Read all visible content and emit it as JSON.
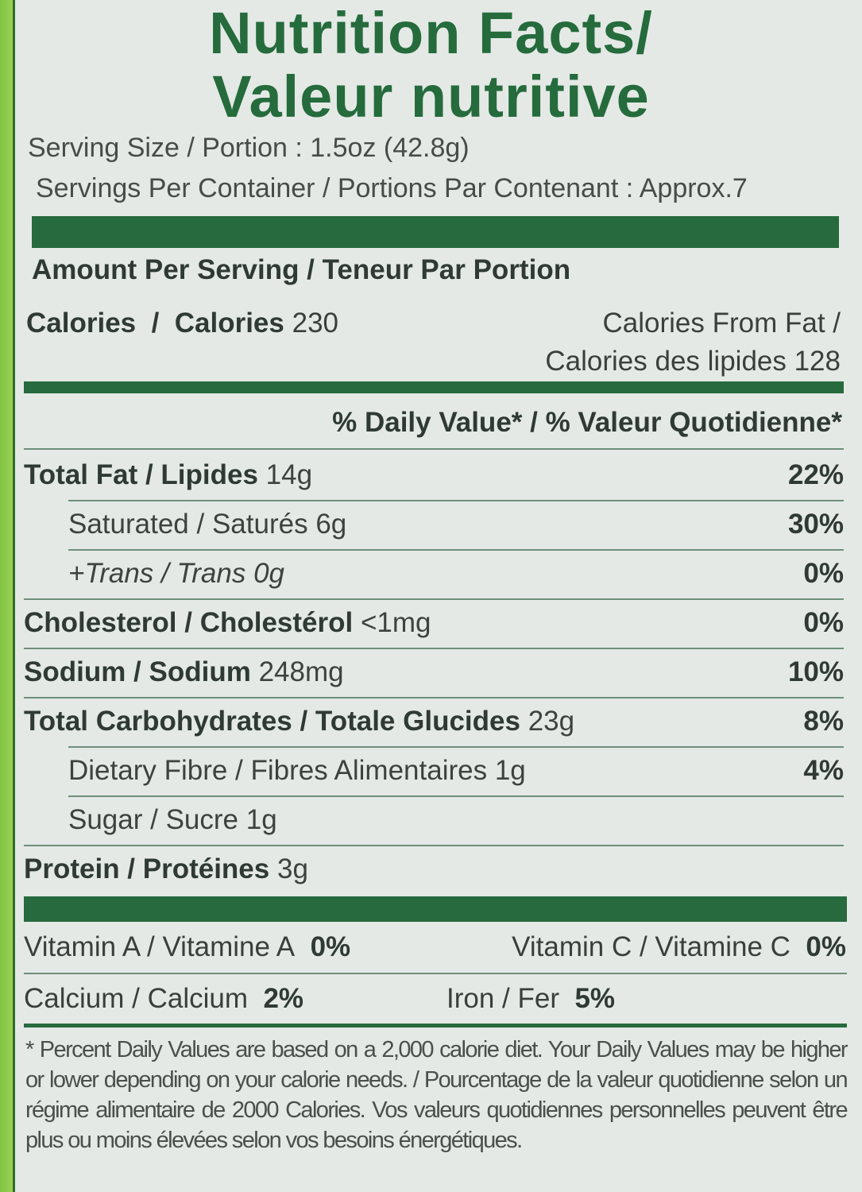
{
  "title": {
    "line1": "Nutrition Facts/",
    "line2": "Valeur nutritive"
  },
  "serving_size": "Serving Size / Portion : 1.5oz (42.8g)",
  "servings_per_container": "Servings Per Container / Portions Par Contenant : Approx.7",
  "amount_per_serving": "Amount Per Serving / Teneur Par Portion",
  "calories": {
    "label": "Calories  /  Calories",
    "value": "230",
    "from_fat_line1": "Calories From Fat /",
    "from_fat_line2": "Calories des lipides 128"
  },
  "daily_value_header": "% Daily Value* / % Valeur Quotidienne*",
  "nutrients": [
    {
      "label": "Total Fat / Lipides",
      "amount": "14g",
      "pct": "22%"
    },
    {
      "label": "Saturated / Saturés",
      "amount": "6g",
      "pct": "30%"
    },
    {
      "label": "+Trans / Trans",
      "amount": "0g",
      "pct": "0%"
    },
    {
      "label": "Cholesterol / Cholestérol",
      "amount": "<1mg",
      "pct": "0%"
    },
    {
      "label": "Sodium / Sodium",
      "amount": "248mg",
      "pct": "10%"
    },
    {
      "label": "Total Carbohydrates / Totale Glucides",
      "amount": "23g",
      "pct": "8%"
    },
    {
      "label": "Dietary Fibre / Fibres Alimentaires",
      "amount": "1g",
      "pct": "4%"
    },
    {
      "label": "Sugar / Sucre",
      "amount": "1g",
      "pct": ""
    },
    {
      "label": "Protein / Protéines",
      "amount": "3g",
      "pct": ""
    }
  ],
  "vitamins": [
    {
      "label": "Vitamin A / Vitamine A",
      "pct": "0%"
    },
    {
      "label": "Vitamin C / Vitamine C",
      "pct": "0%"
    },
    {
      "label": "Calcium / Calcium",
      "pct": "2%"
    },
    {
      "label": "Iron / Fer",
      "pct": "5%"
    }
  ],
  "footnote": "* Percent Daily Values are based on a 2,000 calorie diet. Your Daily Values may be higher or lower depending on your calorie needs. / Pourcentage de la valeur quotidienne selon un régime alimentaire de 2000 Calories. Vos valeurs quotidiennes personnelles peuvent être plus ou moins élevées selon vos besoins énergétiques.",
  "colors": {
    "green": "#276a3d",
    "background": "#e4e9e6",
    "text": "#3a3f3c"
  }
}
